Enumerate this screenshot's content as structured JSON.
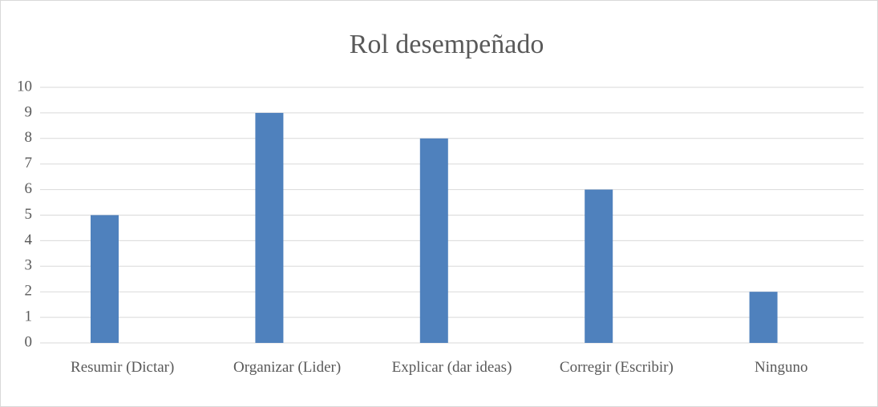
{
  "chart_data": {
    "type": "bar",
    "title": "Rol desempeñado",
    "categories": [
      "Resumir (Dictar)",
      "Organizar (Lider)",
      "Explicar (dar ideas)",
      "Corregir (Escribir)",
      "Ninguno"
    ],
    "values": [
      5,
      9,
      8,
      6,
      2
    ],
    "color": "#4f81bd",
    "ylim": [
      0,
      10
    ],
    "yticks": [
      0,
      1,
      2,
      3,
      4,
      5,
      6,
      7,
      8,
      9,
      10
    ],
    "grid": true
  }
}
